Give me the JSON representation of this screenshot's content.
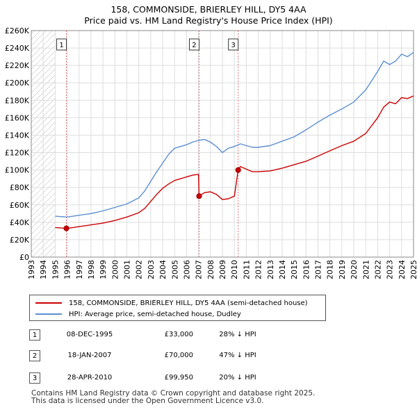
{
  "chart_data": {
    "type": "line",
    "title": "158, COMMONSIDE, BRIERLEY HILL, DY5 4AA",
    "subtitle": "Price paid vs. HM Land Registry's House Price Index (HPI)",
    "xlabel": "",
    "ylabel": "",
    "xlim": [
      1993,
      2025
    ],
    "ylim": [
      0,
      260000
    ],
    "grid": true,
    "x_ticks": [
      "1993",
      "1994",
      "1995",
      "1996",
      "1997",
      "1998",
      "1999",
      "2000",
      "2001",
      "2002",
      "2003",
      "2004",
      "2005",
      "2006",
      "2007",
      "2008",
      "2009",
      "2010",
      "2011",
      "2012",
      "2013",
      "2014",
      "2015",
      "2016",
      "2017",
      "2018",
      "2019",
      "2020",
      "2021",
      "2022",
      "2023",
      "2024",
      "2025"
    ],
    "y_ticks": [
      "£0",
      "£20K",
      "£40K",
      "£60K",
      "£80K",
      "£100K",
      "£120K",
      "£140K",
      "£160K",
      "£180K",
      "£200K",
      "£220K",
      "£240K",
      "£260K"
    ],
    "y_tick_values": [
      0,
      20000,
      40000,
      60000,
      80000,
      100000,
      120000,
      140000,
      160000,
      180000,
      200000,
      220000,
      240000,
      260000
    ],
    "hatch_until": 1995.0,
    "series": [
      {
        "name": "158, COMMONSIDE, BRIERLEY HILL, DY5 4AA (semi-detached house)",
        "color": "#cc0000",
        "x": [
          1995.0,
          1995.94,
          1996.5,
          1997.0,
          1998.0,
          1999.0,
          2000.0,
          2001.0,
          2002.0,
          2002.5,
          2003.0,
          2003.5,
          2004.0,
          2004.5,
          2005.0,
          2005.5,
          2006.0,
          2006.5,
          2007.0,
          2007.05,
          2007.5,
          2008.0,
          2008.5,
          2009.0,
          2009.5,
          2010.0,
          2010.32,
          2010.5,
          2011.0,
          2011.5,
          2012.0,
          2013.0,
          2014.0,
          2015.0,
          2016.0,
          2017.0,
          2018.0,
          2019.0,
          2020.0,
          2021.0,
          2022.0,
          2022.5,
          2023.0,
          2023.5,
          2024.0,
          2024.5,
          2025.0
        ],
        "y": [
          34000,
          33000,
          34000,
          35000,
          37000,
          39000,
          42000,
          46000,
          51000,
          56000,
          64000,
          72000,
          79000,
          84000,
          88000,
          90000,
          92000,
          94000,
          95000,
          70000,
          74000,
          75000,
          72000,
          66000,
          67000,
          70000,
          99950,
          104000,
          101000,
          98000,
          98000,
          99000,
          102000,
          106000,
          110000,
          116000,
          122000,
          128000,
          133000,
          142000,
          160000,
          172000,
          178000,
          176000,
          183000,
          182000,
          185000
        ]
      },
      {
        "name": "HPI: Average price, semi-detached house, Dudley",
        "color": "#5b8fd0",
        "x": [
          1995.0,
          1996.0,
          1997.0,
          1998.0,
          1999.0,
          2000.0,
          2001.0,
          2002.0,
          2002.5,
          2003.0,
          2003.5,
          2004.0,
          2004.5,
          2005.0,
          2005.5,
          2006.0,
          2006.5,
          2007.0,
          2007.5,
          2008.0,
          2008.5,
          2009.0,
          2009.5,
          2010.0,
          2010.5,
          2011.0,
          2011.5,
          2012.0,
          2013.0,
          2014.0,
          2015.0,
          2016.0,
          2017.0,
          2018.0,
          2019.0,
          2020.0,
          2021.0,
          2022.0,
          2022.5,
          2023.0,
          2023.5,
          2024.0,
          2024.5,
          2025.0
        ],
        "y": [
          47000,
          46000,
          48000,
          50000,
          53000,
          57000,
          61000,
          68000,
          76000,
          87000,
          98000,
          108000,
          118000,
          125000,
          127000,
          129000,
          132000,
          134000,
          135000,
          132000,
          127000,
          120000,
          125000,
          127000,
          130000,
          128000,
          126000,
          126000,
          128000,
          133000,
          138000,
          146000,
          155000,
          163000,
          170000,
          178000,
          192000,
          213000,
          225000,
          221000,
          225000,
          233000,
          230000,
          235000
        ]
      }
    ],
    "sale_points": [
      {
        "label": "1",
        "x": 1995.94,
        "y": 33000
      },
      {
        "label": "2",
        "x": 2007.05,
        "y": 70000
      },
      {
        "label": "3",
        "x": 2010.32,
        "y": 99950
      }
    ]
  },
  "legend": {
    "items": [
      {
        "label": "158, COMMONSIDE, BRIERLEY HILL, DY5 4AA (semi-detached house)",
        "color": "#cc0000"
      },
      {
        "label": "HPI: Average price, semi-detached house, Dudley",
        "color": "#5b8fd0"
      }
    ]
  },
  "sales": [
    {
      "num": "1",
      "date": "08-DEC-1995",
      "price": "£33,000",
      "hpi": "28% ↓ HPI"
    },
    {
      "num": "2",
      "date": "18-JAN-2007",
      "price": "£70,000",
      "hpi": "47% ↓ HPI"
    },
    {
      "num": "3",
      "date": "28-APR-2010",
      "price": "£99,950",
      "hpi": "20% ↓ HPI"
    }
  ],
  "footer": {
    "line1": "Contains HM Land Registry data © Crown copyright and database right 2025.",
    "line2": "This data is licensed under the Open Government Licence v3.0."
  }
}
